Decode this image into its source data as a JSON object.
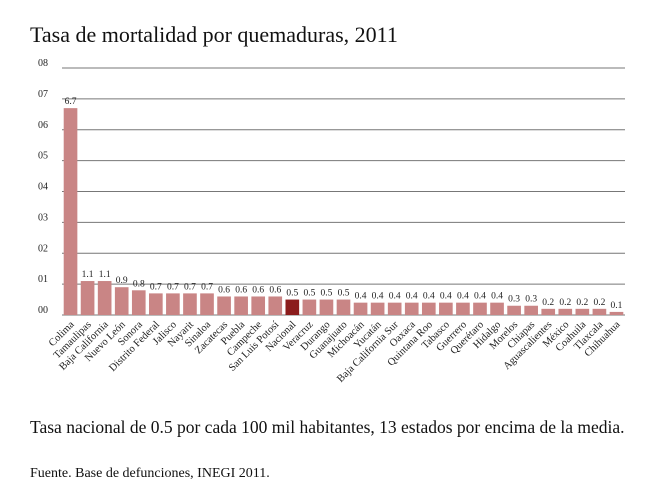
{
  "chart_data": {
    "type": "bar",
    "title": "Tasa de mortalidad por quemaduras, 2011",
    "xlabel": "",
    "ylabel": "",
    "ylim": [
      0,
      8
    ],
    "yticks": [
      "00",
      "01",
      "02",
      "03",
      "04",
      "05",
      "06",
      "07",
      "08"
    ],
    "grid": true,
    "legend": "none",
    "categories": [
      "Colima",
      "Tamaulipas",
      "Baja California",
      "Nuevo León",
      "Sonora",
      "Distrito Federal",
      "Jalisco",
      "Nayarit",
      "Sinaloa",
      "Zacatecas",
      "Puebla",
      "Campeche",
      "San Luis Potosí",
      "Nacional",
      "Veracruz",
      "Durango",
      "Guanajuato",
      "Michoacán",
      "Yucatán",
      "Baja California Sur",
      "Oaxaca",
      "Quintana Roo",
      "Tabasco",
      "Guerrero",
      "Querétaro",
      "Hidalgo",
      "Morelos",
      "Chiapas",
      "Aguascalientes",
      "México",
      "Coahuila",
      "Tlaxcala",
      "Chihuahua"
    ],
    "values": [
      6.7,
      1.1,
      1.1,
      0.9,
      0.8,
      0.7,
      0.7,
      0.7,
      0.7,
      0.6,
      0.6,
      0.6,
      0.6,
      0.5,
      0.5,
      0.5,
      0.5,
      0.4,
      0.4,
      0.4,
      0.4,
      0.4,
      0.4,
      0.4,
      0.4,
      0.4,
      0.3,
      0.3,
      0.2,
      0.2,
      0.2,
      0.2,
      0.1
    ],
    "value_labels": [
      "6.7",
      "1.1",
      "1.1",
      "0.9",
      "0.8",
      "0.7",
      "0.7",
      "0.7",
      "0.7",
      "0.6",
      "0.6",
      "0.6",
      "0.6",
      "0.5",
      "0.5",
      "0.5",
      "0.5",
      "0.4",
      "0.4",
      "0.4",
      "0.4",
      "0.4",
      "0.4",
      "0.4",
      "0.4",
      "0.4",
      "0.3",
      "0.3",
      "0.2",
      "0.2",
      "0.2",
      "0.2",
      "0.1"
    ],
    "highlight_category": "Nacional",
    "colors": {
      "bar": "#c98585",
      "highlight": "#8b1c1c",
      "grid": "#777777"
    }
  },
  "footer": {
    "note": "Tasa nacional de 0.5 por cada 100 mil habitantes, 13 estados por encima de la media.",
    "source": "Fuente. Base de defunciones, INEGI 2011."
  }
}
